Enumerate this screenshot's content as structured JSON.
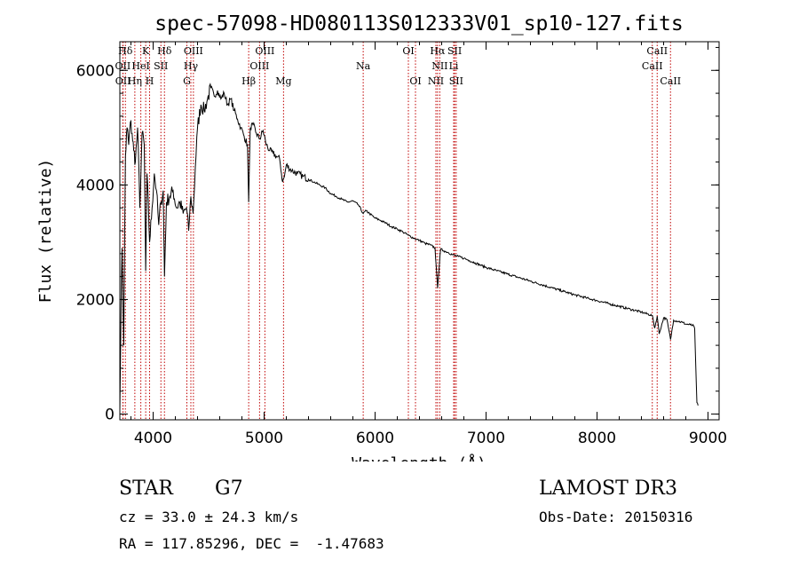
{
  "chart_data": {
    "type": "line",
    "title": "spec-57098-HD080113S012333V01_sp10-127.fits",
    "xlabel": "Wavelength (Å)",
    "ylabel": "Flux (relative)",
    "xlim": [
      3700,
      9100
    ],
    "ylim": [
      -100,
      6500
    ],
    "xticks": [
      4000,
      5000,
      6000,
      7000,
      8000,
      9000
    ],
    "yticks": [
      0,
      2000,
      4000,
      6000
    ],
    "grid": false,
    "series": [
      {
        "name": "spectrum",
        "x": [
          3700,
          3710,
          3720,
          3735,
          3750,
          3765,
          3780,
          3795,
          3810,
          3825,
          3840,
          3860,
          3880,
          3900,
          3920,
          3933,
          3945,
          3968,
          3990,
          4010,
          4030,
          4050,
          4070,
          4090,
          4102,
          4120,
          4150,
          4180,
          4210,
          4240,
          4270,
          4300,
          4320,
          4340,
          4360,
          4380,
          4400,
          4430,
          4460,
          4490,
          4520,
          4550,
          4580,
          4610,
          4640,
          4670,
          4700,
          4730,
          4760,
          4790,
          4820,
          4850,
          4861,
          4875,
          4900,
          4930,
          4960,
          4990,
          5020,
          5050,
          5080,
          5110,
          5140,
          5167,
          5183,
          5200,
          5250,
          5300,
          5350,
          5400,
          5450,
          5500,
          5550,
          5600,
          5650,
          5700,
          5750,
          5800,
          5850,
          5893,
          5920,
          5950,
          6000,
          6050,
          6100,
          6150,
          6200,
          6250,
          6300,
          6350,
          6400,
          6450,
          6500,
          6540,
          6563,
          6590,
          6620,
          6660,
          6700,
          6750,
          6800,
          6850,
          6900,
          6950,
          7000,
          7100,
          7200,
          7300,
          7400,
          7500,
          7600,
          7700,
          7800,
          7900,
          8000,
          8100,
          8200,
          8300,
          8400,
          8498,
          8520,
          8542,
          8560,
          8600,
          8630,
          8662,
          8690,
          8730,
          8770,
          8800,
          8840,
          8870,
          8880,
          8890,
          8900,
          8910
        ],
        "values": [
          60,
          1800,
          2900,
          1200,
          4500,
          5000,
          4700,
          5100,
          4900,
          4600,
          4400,
          5000,
          3600,
          4900,
          4700,
          2500,
          4200,
          3000,
          3600,
          4200,
          3900,
          3300,
          3700,
          3900,
          2400,
          3700,
          3800,
          3900,
          3600,
          3700,
          3500,
          3600,
          3200,
          3800,
          3500,
          4300,
          5000,
          5400,
          5300,
          5500,
          5700,
          5550,
          5650,
          5500,
          5600,
          5400,
          5500,
          5300,
          5150,
          5000,
          4850,
          4700,
          3700,
          5000,
          5050,
          4900,
          4800,
          4950,
          4700,
          4600,
          4550,
          4500,
          4450,
          4050,
          4150,
          4350,
          4250,
          4200,
          4150,
          4100,
          4050,
          4000,
          3950,
          3850,
          3800,
          3750,
          3700,
          3720,
          3650,
          3500,
          3550,
          3500,
          3420,
          3380,
          3330,
          3270,
          3230,
          3180,
          3120,
          3070,
          3030,
          2980,
          2950,
          2900,
          2200,
          2880,
          2850,
          2820,
          2780,
          2750,
          2720,
          2680,
          2640,
          2600,
          2560,
          2500,
          2440,
          2380,
          2320,
          2260,
          2200,
          2140,
          2080,
          2030,
          1980,
          1930,
          1880,
          1830,
          1780,
          1720,
          1500,
          1710,
          1400,
          1680,
          1650,
          1300,
          1640,
          1620,
          1600,
          1570,
          1560,
          1540,
          1490,
          800,
          200,
          150
        ]
      }
    ],
    "lines_top_row": [
      {
        "label": "Hδ",
        "x": 3750
      },
      {
        "label": "K",
        "x": 3933
      },
      {
        "label": "Hδ",
        "x": 4102
      },
      {
        "label": "OIII",
        "x": 4363
      },
      {
        "label": "OIII",
        "x": 5007
      },
      {
        "label": "OI",
        "x": 6300
      },
      {
        "label": "Hα",
        "x": 6563
      },
      {
        "label": "SII",
        "x": 6717
      },
      {
        "label": "CaII",
        "x": 8542
      }
    ],
    "lines_middle_row": [
      {
        "label": "OII",
        "x": 3727
      },
      {
        "label": "HeI",
        "x": 3889
      },
      {
        "label": "SII",
        "x": 4070
      },
      {
        "label": "Hγ",
        "x": 4340
      },
      {
        "label": "OIII",
        "x": 4959
      },
      {
        "label": "Na",
        "x": 5893
      },
      {
        "label": "NII",
        "x": 6583
      },
      {
        "label": "Li",
        "x": 6708
      },
      {
        "label": "CaII",
        "x": 8498
      }
    ],
    "lines_bottom_row": [
      {
        "label": "OII",
        "x": 3729
      },
      {
        "label": "Hη",
        "x": 3835
      },
      {
        "label": "H",
        "x": 3968
      },
      {
        "label": "G",
        "x": 4304
      },
      {
        "label": "Hβ",
        "x": 4861
      },
      {
        "label": "Mg",
        "x": 5175
      },
      {
        "label": "OI",
        "x": 6364
      },
      {
        "label": "NII",
        "x": 6548
      },
      {
        "label": "SII",
        "x": 6731
      },
      {
        "label": "CaII",
        "x": 8662
      }
    ]
  },
  "info": {
    "class": "STAR",
    "subclass": "G7",
    "survey": "LAMOST DR3",
    "cz": "cz = 33.0 ± 24.3 km/s",
    "obs_date": "Obs-Date: 20150316",
    "coords": "RA = 117.85296, DEC =  -1.47683"
  },
  "colors": {
    "line_marker": "#c00000",
    "spectrum": "#000000",
    "axes": "#000000"
  }
}
